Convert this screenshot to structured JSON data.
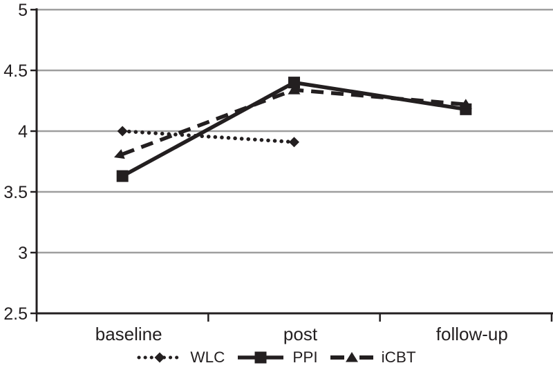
{
  "chart_data": {
    "type": "line",
    "title": "",
    "categories": [
      "baseline",
      "post",
      "follow-up"
    ],
    "y_axis": {
      "min": 2.5,
      "max": 5,
      "ticks": [
        5,
        4.5,
        4,
        3.5,
        3,
        2.5
      ],
      "tick_labels": [
        "5",
        "4.5",
        "4",
        "3.5",
        "3",
        "2.5"
      ]
    },
    "series": [
      {
        "name": "WLC",
        "marker": "diamond",
        "line_style": "dotted",
        "values": [
          4.0,
          3.91,
          null
        ]
      },
      {
        "name": "PPI",
        "marker": "square",
        "line_style": "solid",
        "values": [
          3.63,
          4.4,
          4.18
        ]
      },
      {
        "name": "iCBT",
        "marker": "triangle",
        "line_style": "dashed",
        "values": [
          3.81,
          4.34,
          4.22
        ]
      }
    ],
    "legend_position": "bottom",
    "grid": "horizontal",
    "colors": {
      "series": "#231f20",
      "gridline": "#9e9e9e",
      "axis": "#231f20",
      "text": "#231f20"
    }
  }
}
